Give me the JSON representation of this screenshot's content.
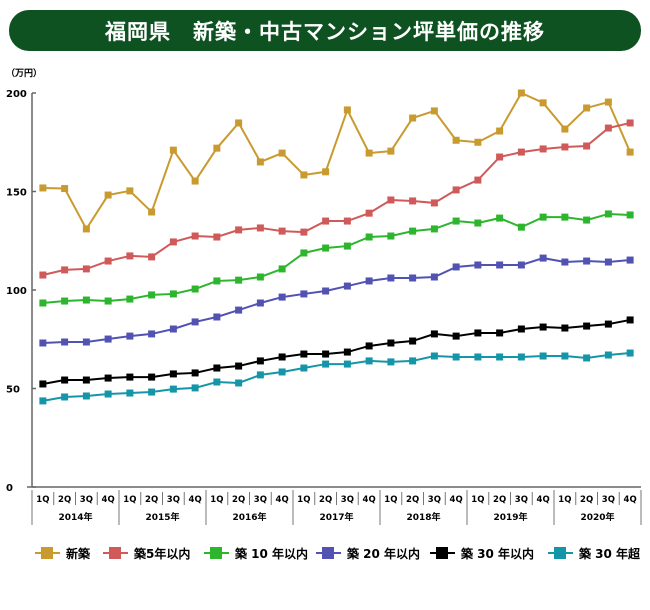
{
  "chart_data": {
    "type": "line",
    "title": "福岡県　新築・中古マンション坪単価の推移",
    "ylabel": "（万円）",
    "ylim": [
      0,
      200
    ],
    "yticks": [
      0,
      50,
      100,
      150,
      200
    ],
    "grid": false,
    "legend": "bottom",
    "quarters": [
      "1Q",
      "2Q",
      "3Q",
      "4Q"
    ],
    "years": [
      "2014年",
      "2015年",
      "2016年",
      "2017年",
      "2018年",
      "2019年",
      "2020年"
    ],
    "series": [
      {
        "name": "新築",
        "color": "#c99a2e",
        "values": [
          151.8,
          151.5,
          131,
          148.2,
          150.3,
          139.6,
          171,
          155.3,
          172,
          184.8,
          165,
          169.5,
          158.4,
          160,
          191.4,
          169.5,
          170.5,
          187.3,
          190.9,
          176,
          175,
          180.7,
          200,
          195,
          181.7,
          192.4,
          195.4,
          170
        ]
      },
      {
        "name": "築5年以内",
        "color": "#d05a5a",
        "values": [
          107.6,
          110.2,
          110.7,
          114.7,
          117.3,
          116.8,
          124.4,
          127.4,
          126.9,
          130.5,
          131.5,
          129.9,
          129.4,
          135,
          135,
          139,
          145.7,
          145.2,
          144.2,
          150.8,
          155.8,
          167.5,
          170,
          171.6,
          172.6,
          173.1,
          182.2,
          184.8
        ]
      },
      {
        "name": "築 10 年以内",
        "color": "#2db52d",
        "values": [
          93.4,
          94.4,
          94.9,
          94.4,
          95.4,
          97.5,
          98,
          100.5,
          104.6,
          105,
          106.6,
          110.7,
          118.8,
          121.3,
          122.3,
          126.9,
          127.4,
          129.9,
          131,
          135,
          134,
          136.5,
          131.9,
          137,
          137,
          135.5,
          138.6,
          138.1
        ]
      },
      {
        "name": "築 20 年以内",
        "color": "#5252b3",
        "values": [
          73.1,
          73.6,
          73.6,
          75.1,
          76.6,
          77.7,
          80.2,
          83.8,
          86.3,
          89.8,
          93.4,
          96.4,
          98,
          99.5,
          102,
          104.6,
          106.1,
          106.1,
          106.6,
          111.7,
          112.7,
          112.7,
          112.7,
          116.2,
          114.2,
          114.7,
          114.2,
          115.2
        ]
      },
      {
        "name": "築 30 年以内",
        "color": "#000000",
        "values": [
          52.3,
          54.3,
          54.3,
          55.3,
          55.8,
          55.8,
          57.4,
          57.9,
          60.4,
          61.4,
          64,
          66,
          67.5,
          67.5,
          68.5,
          71.6,
          73.1,
          74.1,
          77.7,
          76.6,
          78.2,
          78.2,
          80.2,
          81.2,
          80.7,
          81.7,
          82.7,
          84.8
        ]
      },
      {
        "name": "築 30 年超",
        "color": "#1496a8",
        "values": [
          43.7,
          45.7,
          46.2,
          47.2,
          47.7,
          48.2,
          49.7,
          50.3,
          53.3,
          52.8,
          56.9,
          58.4,
          60.4,
          62.4,
          62.4,
          64,
          63.5,
          64,
          66.5,
          66,
          66,
          66,
          66,
          66.5,
          66.5,
          65.5,
          67,
          68
        ]
      }
    ]
  }
}
